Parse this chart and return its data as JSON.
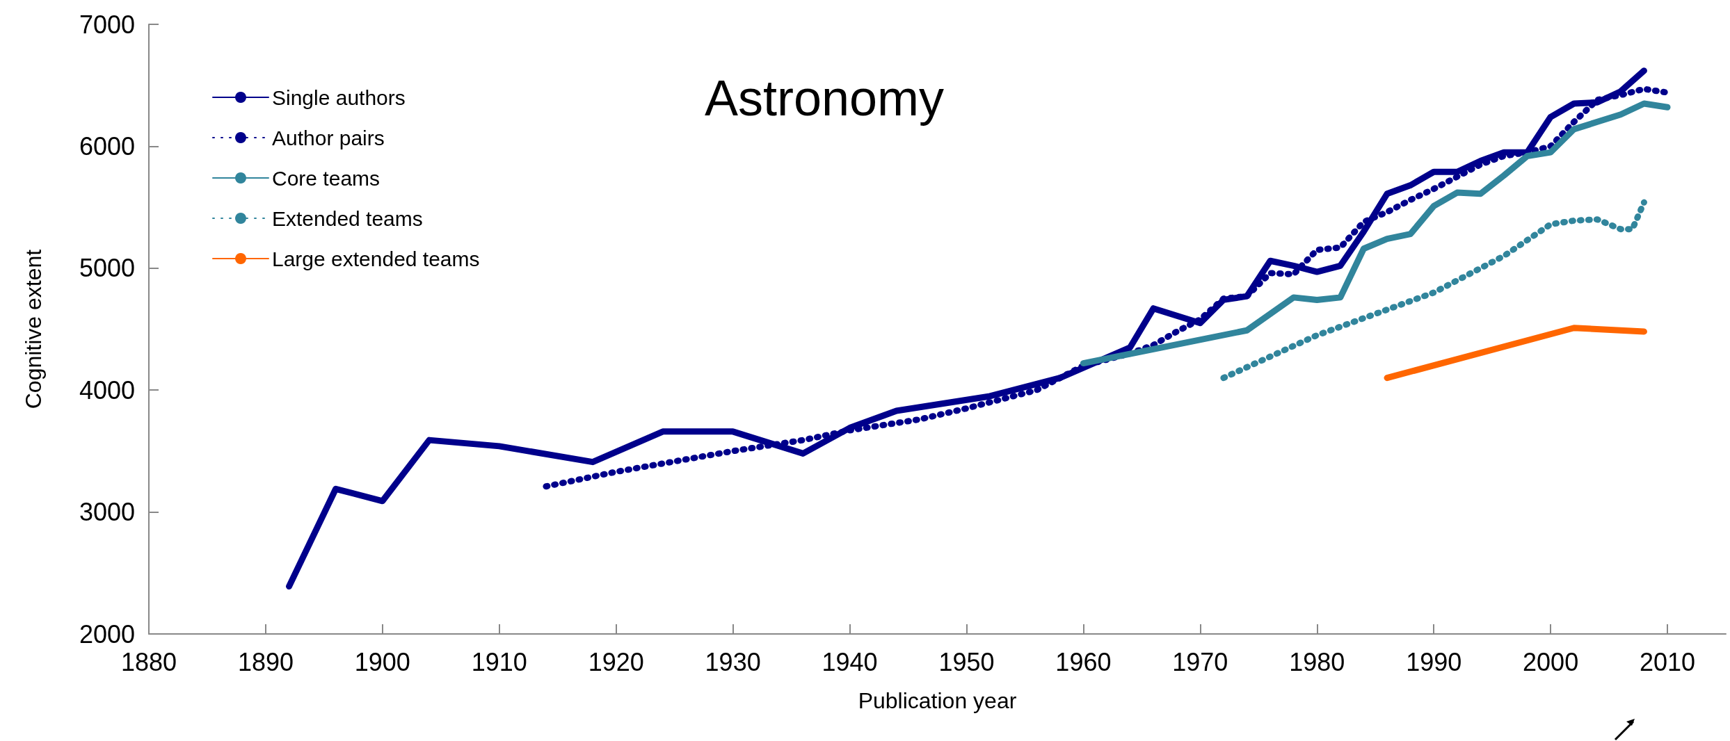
{
  "chart_data": {
    "type": "line",
    "title": "Astronomy",
    "xlabel": "Publication year",
    "ylabel": "Cognitive extent",
    "xlim": [
      1880,
      2015
    ],
    "xticks": [
      1880,
      1890,
      1900,
      1910,
      1920,
      1930,
      1940,
      1950,
      1960,
      1970,
      1980,
      1990,
      2000,
      2010
    ],
    "ylim": [
      2000,
      7000
    ],
    "yticks": [
      2000,
      3000,
      4000,
      5000,
      6000,
      7000
    ],
    "grid": false,
    "legend": "top left",
    "marker": "none",
    "series": [
      {
        "name": "Single authors",
        "color": "#00008b",
        "line_style": "solid",
        "x": [
          1892,
          1896,
          1900,
          1904,
          1910,
          1918,
          1924,
          1930,
          1936,
          1940,
          1944,
          1952,
          1958,
          1964,
          1966,
          1970,
          1972,
          1974,
          1976,
          1978,
          1980,
          1982,
          1984,
          1986,
          1988,
          1990,
          1992,
          1994,
          1996,
          1998,
          2000,
          2002,
          2004,
          2006,
          2008
        ],
        "values": [
          2390,
          3190,
          3090,
          3590,
          3540,
          3410,
          3660,
          3660,
          3480,
          3690,
          3830,
          3950,
          4100,
          4350,
          4670,
          4550,
          4740,
          4770,
          5060,
          5020,
          4970,
          5020,
          5300,
          5610,
          5680,
          5790,
          5790,
          5880,
          5950,
          5950,
          6240,
          6350,
          6360,
          6450,
          6620
        ]
      },
      {
        "name": "Author pairs",
        "color": "#00008b",
        "line_style": "dotted",
        "x": [
          1914,
          1920,
          1930,
          1936,
          1940,
          1946,
          1950,
          1956,
          1960,
          1964,
          1966,
          1968,
          1970,
          1972,
          1974,
          1976,
          1978,
          1980,
          1982,
          1984,
          1986,
          1988,
          1990,
          1992,
          1994,
          1996,
          1998,
          2000,
          2002,
          2004,
          2006,
          2008,
          2010
        ],
        "values": [
          3210,
          3330,
          3500,
          3590,
          3670,
          3760,
          3850,
          4000,
          4200,
          4300,
          4370,
          4480,
          4580,
          4750,
          4770,
          4960,
          4950,
          5150,
          5170,
          5380,
          5460,
          5560,
          5650,
          5750,
          5850,
          5920,
          5950,
          6000,
          6200,
          6380,
          6420,
          6470,
          6440
        ]
      },
      {
        "name": "Core teams",
        "color": "#31859c",
        "line_style": "solid",
        "x": [
          1960,
          1974,
          1978,
          1980,
          1982,
          1984,
          1986,
          1988,
          1990,
          1992,
          1994,
          1996,
          1998,
          2000,
          2002,
          2004,
          2006,
          2008,
          2010
        ],
        "values": [
          4220,
          4490,
          4760,
          4740,
          4760,
          5160,
          5240,
          5280,
          5510,
          5620,
          5610,
          5760,
          5920,
          5950,
          6140,
          6200,
          6260,
          6350,
          6320
        ]
      },
      {
        "name": "Extended teams",
        "color": "#31859c",
        "line_style": "dotted",
        "x": [
          1972,
          1980,
          1990,
          1996,
          2000,
          2002,
          2004,
          2006,
          2007,
          2008
        ],
        "values": [
          4100,
          4450,
          4800,
          5100,
          5360,
          5390,
          5400,
          5320,
          5320,
          5540
        ]
      },
      {
        "name": "Large extended teams",
        "color": "#ff6600",
        "line_style": "solid",
        "x": [
          1986,
          2002,
          2008
        ],
        "values": [
          4100,
          4510,
          4480
        ]
      }
    ]
  }
}
